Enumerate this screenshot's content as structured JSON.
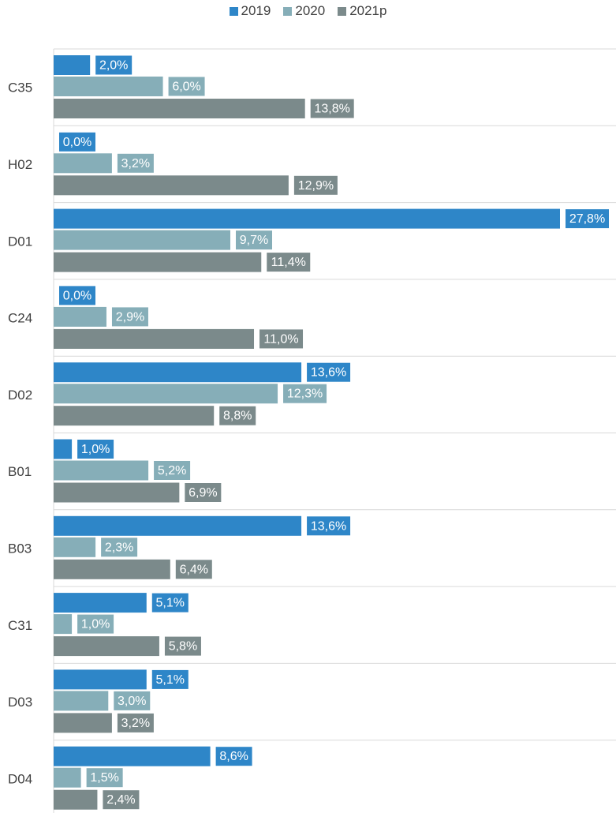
{
  "chart_data": {
    "type": "bar",
    "orientation": "horizontal",
    "categories": [
      "C35",
      "H02",
      "D01",
      "C24",
      "D02",
      "B01",
      "B03",
      "C31",
      "D03",
      "D04"
    ],
    "series": [
      {
        "name": "2019",
        "color": "#2e86c8",
        "values": [
          2.0,
          0.0,
          27.8,
          0.0,
          13.6,
          1.0,
          13.6,
          5.1,
          5.1,
          8.6
        ],
        "labels": [
          "2,0%",
          "0,0%",
          "27,8%",
          "0,0%",
          "13,6%",
          "1,0%",
          "13,6%",
          "5,1%",
          "5,1%",
          "8,6%"
        ]
      },
      {
        "name": "2020",
        "color": "#86aeb8",
        "values": [
          6.0,
          3.2,
          9.7,
          2.9,
          12.3,
          5.2,
          2.3,
          1.0,
          3.0,
          1.5
        ],
        "labels": [
          "6,0%",
          "3,2%",
          "9,7%",
          "2,9%",
          "12,3%",
          "5,2%",
          "2,3%",
          "1,0%",
          "3,0%",
          "1,5%"
        ]
      },
      {
        "name": "2021p",
        "color": "#7b8a8b",
        "values": [
          13.8,
          12.9,
          11.4,
          11.0,
          8.8,
          6.9,
          6.4,
          5.8,
          3.2,
          2.4
        ],
        "labels": [
          "13,8%",
          "12,9%",
          "11,4%",
          "11,0%",
          "8,8%",
          "6,9%",
          "6,4%",
          "5,8%",
          "3,2%",
          "2,4%"
        ]
      }
    ],
    "xlim": [
      0,
      27.8
    ],
    "legend_position": "top-center",
    "grid": "horizontal separators between categories"
  }
}
